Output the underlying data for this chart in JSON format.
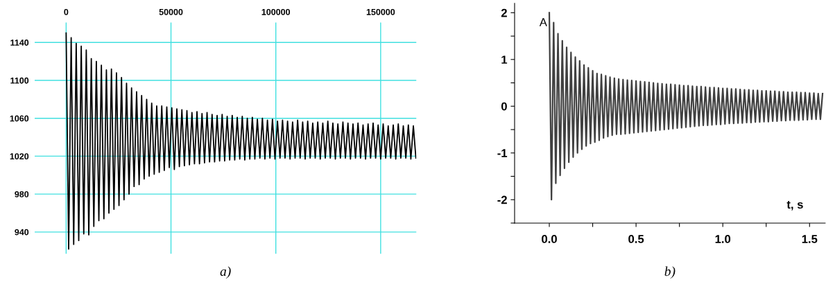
{
  "chart_data": [
    {
      "type": "line",
      "xlim": [
        -15000,
        167000
      ],
      "xticks": [
        0,
        50000,
        {
          "value": 100000,
          "label": "100000"
        },
        {
          "value": 150000,
          "label": "150000"
        }
      ],
      "ylim": [
        917,
        1161
      ],
      "yticks": [
        940,
        980,
        1020,
        1060,
        1100,
        1140
      ],
      "grid": true,
      "annotations": [
        "a)"
      ],
      "series": [
        {
          "color": "#000000",
          "x": [
            0,
            1200,
            2400,
            3600,
            4800,
            6000,
            7200,
            8400,
            9600,
            10800,
            12000,
            13200,
            14400,
            15600,
            16800,
            18000,
            19200,
            20400,
            21600,
            22800,
            24000,
            25200,
            26400,
            27600,
            28800,
            30000,
            31200,
            32400,
            33600,
            34800,
            36000,
            37200,
            38400,
            39600,
            40800,
            42000,
            43200,
            44400,
            45600,
            46800,
            48000,
            49200,
            50400,
            51600,
            52800,
            54000,
            55200,
            56400,
            57600,
            58800,
            60000,
            61200,
            62400,
            63600,
            64800,
            66000,
            67200,
            68400,
            69600,
            70800,
            72000,
            73200,
            74400,
            75600,
            76800,
            78000,
            79200,
            80400,
            81600,
            82800,
            84000,
            85200,
            86400,
            87600,
            88800,
            90000,
            91200,
            92400,
            93600,
            94800,
            96000,
            97200,
            98400,
            99600,
            100800,
            102000,
            103200,
            104400,
            105600,
            106800,
            108000,
            109200,
            110400,
            111600,
            112800,
            114000,
            115200,
            116400,
            117600,
            118800,
            120000,
            121200,
            122400,
            123600,
            124800,
            126000,
            127200,
            128400,
            129600,
            130800,
            132000,
            133200,
            134400,
            135600,
            136800,
            138000,
            139200,
            140400,
            141600,
            142800,
            144000,
            145200,
            146400,
            147600,
            148800,
            150000,
            151200,
            152400,
            153600,
            154800,
            156000,
            157200,
            158400,
            159600,
            160800,
            162000,
            163200,
            164400,
            165600,
            166800
          ],
          "values": [
            1150,
            922,
            1145,
            927,
            1139,
            931,
            1136,
            938,
            1132,
            937,
            1123,
            946,
            1120,
            952,
            1116,
            954,
            1111,
            960,
            1112,
            964,
            1108,
            968,
            1103,
            974,
            1097,
            980,
            1092,
            988,
            1088,
            990,
            1084,
            996,
            1080,
            999,
            1076,
            1001,
            1073,
            1003,
            1073,
            1005,
            1072,
            1008,
            1071,
            1006,
            1070,
            1009,
            1069,
            1010,
            1068,
            1011,
            1066,
            1012,
            1067,
            1012,
            1065,
            1013,
            1066,
            1014,
            1064,
            1014,
            1063,
            1015,
            1064,
            1015,
            1062,
            1016,
            1063,
            1016,
            1061,
            1017,
            1062,
            1016,
            1060,
            1017,
            1061,
            1017,
            1059,
            1018,
            1060,
            1017,
            1058,
            1018,
            1059,
            1017,
            1057,
            1018,
            1058,
            1018,
            1057,
            1017,
            1056,
            1018,
            1058,
            1018,
            1056,
            1017,
            1057,
            1018,
            1055,
            1018,
            1056,
            1017,
            1055,
            1018,
            1057,
            1018,
            1055,
            1017,
            1054,
            1018,
            1056,
            1018,
            1055,
            1017,
            1054,
            1018,
            1055,
            1018,
            1053,
            1017,
            1054,
            1018,
            1055,
            1018,
            1053,
            1017,
            1054,
            1018,
            1052,
            1018,
            1053,
            1017,
            1054,
            1018,
            1052,
            1018,
            1053,
            1017,
            1052,
            1018
          ]
        }
      ]
    },
    {
      "type": "line",
      "xlim": [
        -0.2,
        1.59
      ],
      "xticks": [
        {
          "value": 0,
          "label": "0.0"
        },
        {
          "value": 0.25,
          "label": null
        },
        {
          "value": 0.5,
          "label": "0.5"
        },
        {
          "value": 0.75,
          "label": null
        },
        {
          "value": 1,
          "label": "1.0"
        },
        {
          "value": 1.25,
          "label": null
        },
        {
          "value": 1.5,
          "label": "1.5"
        }
      ],
      "ylim": [
        -2.5,
        2.2
      ],
      "yticks": [
        {
          "value": -2.5,
          "label": null
        },
        -2,
        {
          "value": -1.5,
          "label": null
        },
        -1,
        {
          "value": -0.5,
          "label": null
        },
        0,
        {
          "value": 0.5,
          "label": null
        },
        1,
        {
          "value": 1.5,
          "label": null
        },
        2
      ],
      "xlabel": "t, s",
      "annotations": [
        "A",
        "b)"
      ],
      "series": [
        {
          "color": "#404040",
          "x": [
            0,
            0.0125,
            0.025,
            0.0375,
            0.05,
            0.0625,
            0.075,
            0.0875,
            0.1,
            0.1125,
            0.125,
            0.1375,
            0.15,
            0.1625,
            0.175,
            0.1875,
            0.2,
            0.2125,
            0.225,
            0.2375,
            0.25,
            0.2625,
            0.275,
            0.2875,
            0.3,
            0.3125,
            0.325,
            0.3375,
            0.35,
            0.3625,
            0.375,
            0.3875,
            0.4,
            0.4125,
            0.425,
            0.4375,
            0.45,
            0.4625,
            0.475,
            0.4875,
            0.5,
            0.5125,
            0.525,
            0.5375,
            0.55,
            0.5625,
            0.575,
            0.5875,
            0.6,
            0.6125,
            0.625,
            0.6375,
            0.65,
            0.6625,
            0.675,
            0.6875,
            0.7,
            0.7125,
            0.725,
            0.7375,
            0.75,
            0.7625,
            0.775,
            0.7875,
            0.8,
            0.8125,
            0.825,
            0.8375,
            0.85,
            0.8625,
            0.875,
            0.8875,
            0.9,
            0.9125,
            0.925,
            0.9375,
            0.95,
            0.9625,
            0.975,
            0.9875,
            1,
            1.0125,
            1.025,
            1.0375,
            1.05,
            1.0625,
            1.075,
            1.0875,
            1.1,
            1.1125,
            1.125,
            1.1375,
            1.15,
            1.1625,
            1.175,
            1.1875,
            1.2,
            1.2125,
            1.225,
            1.2375,
            1.25,
            1.2625,
            1.275,
            1.2875,
            1.3,
            1.3125,
            1.325,
            1.3375,
            1.35,
            1.3625,
            1.375,
            1.3875,
            1.4,
            1.4125,
            1.425,
            1.4375,
            1.45,
            1.4625,
            1.475,
            1.4875,
            1.5,
            1.5125,
            1.525,
            1.5375,
            1.55,
            1.5625,
            1.575
          ],
          "values": [
            2.0,
            -2.0,
            1.79,
            -1.65,
            1.55,
            -1.48,
            1.4,
            -1.33,
            1.26,
            -1.2,
            1.15,
            -1.09,
            1.05,
            -1.0,
            0.97,
            -0.92,
            0.88,
            -0.85,
            0.82,
            -0.8,
            0.76,
            -0.77,
            0.7,
            -0.73,
            0.68,
            -0.68,
            0.65,
            -0.65,
            0.62,
            -0.62,
            0.6,
            -0.6,
            0.58,
            -0.6,
            0.57,
            -0.59,
            0.56,
            -0.58,
            0.55,
            -0.57,
            0.54,
            -0.56,
            0.53,
            -0.55,
            0.52,
            -0.54,
            0.51,
            -0.53,
            0.5,
            -0.52,
            0.49,
            -0.51,
            0.48,
            -0.5,
            0.47,
            -0.49,
            0.47,
            -0.48,
            0.46,
            -0.47,
            0.45,
            -0.46,
            0.44,
            -0.45,
            0.44,
            -0.44,
            0.43,
            -0.43,
            0.42,
            -0.42,
            0.42,
            -0.41,
            0.41,
            -0.41,
            0.4,
            -0.4,
            0.4,
            -0.39,
            0.39,
            -0.39,
            0.38,
            -0.38,
            0.38,
            -0.37,
            0.37,
            -0.37,
            0.37,
            -0.36,
            0.36,
            -0.36,
            0.35,
            -0.35,
            0.35,
            -0.35,
            0.34,
            -0.34,
            0.34,
            -0.34,
            0.33,
            -0.33,
            0.33,
            -0.33,
            0.32,
            -0.32,
            0.32,
            -0.32,
            0.31,
            -0.31,
            0.31,
            -0.31,
            0.3,
            -0.3,
            0.3,
            -0.3,
            0.3,
            -0.3,
            0.29,
            -0.29,
            0.29,
            -0.29,
            0.28,
            -0.28,
            0.28,
            -0.28,
            0.27,
            -0.28,
            0.27
          ]
        }
      ]
    }
  ]
}
